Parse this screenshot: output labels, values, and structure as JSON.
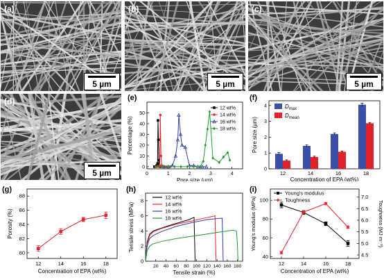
{
  "panels": {
    "a": "(a)",
    "b": "(b)",
    "c": "(c)",
    "d": "(d)",
    "e": "(e)",
    "f": "(f)",
    "g": "(g)",
    "h": "(h)",
    "i": "(i)"
  },
  "scale_bar_label": "5 µm",
  "chart_data": [
    {
      "id": "e",
      "type": "line",
      "xlabel": "Pore size (µm)",
      "ylabel": "Percentage (%)",
      "xlim": [
        0,
        4.5
      ],
      "ylim": [
        -2,
        60
      ],
      "xticks": [
        "0",
        "1",
        "2",
        "3",
        "4"
      ],
      "yticks": [
        "0",
        "10",
        "20",
        "30",
        "40",
        "50"
      ],
      "series": [
        {
          "name": "12 wt%",
          "color": "#000000",
          "marker": "square",
          "x": [
            0.35,
            0.4,
            0.45,
            0.5,
            0.52,
            0.54,
            0.56,
            0.58,
            0.62
          ],
          "y": [
            0,
            0,
            1,
            3,
            43,
            25,
            6,
            1,
            0
          ]
        },
        {
          "name": "14 wt%",
          "color": "#e8262b",
          "marker": "circle",
          "x": [
            0.45,
            0.55,
            0.6,
            0.63,
            0.66,
            0.7,
            0.8,
            0.9,
            1.0,
            1.1
          ],
          "y": [
            0,
            0,
            1,
            48,
            10,
            1,
            0,
            0,
            0,
            0
          ]
        },
        {
          "name": "16 wt%",
          "color": "#2e3fa3",
          "marker": "triangle",
          "x": [
            0.8,
            1.0,
            1.2,
            1.35,
            1.45,
            1.5,
            1.58,
            1.65,
            1.8,
            2.0,
            2.2,
            2.4,
            2.6,
            2.8
          ],
          "y": [
            0,
            0,
            1,
            10,
            25,
            48,
            30,
            20,
            18,
            1,
            1,
            0,
            0,
            0
          ]
        },
        {
          "name": "18 wt%",
          "color": "#1f9a2d",
          "marker": "diamond",
          "x": [
            0.4,
            0.7,
            1.0,
            1.3,
            1.6,
            1.9,
            2.2,
            2.5,
            2.65,
            2.75,
            2.85,
            2.95,
            3.1,
            3.4,
            3.6,
            3.8,
            3.9
          ],
          "y": [
            0,
            0,
            0,
            0,
            0,
            0,
            0,
            0,
            5,
            20,
            35,
            51,
            8,
            4,
            9,
            13,
            6
          ]
        }
      ]
    },
    {
      "id": "f",
      "type": "bar",
      "xlabel": "Concentration of EPA (wt%)",
      "ylabel": "Pore size (µm)",
      "categories": [
        "12",
        "14",
        "16",
        "18"
      ],
      "ylim": [
        0,
        4.3
      ],
      "yticks": [
        "0",
        "1",
        "2",
        "3",
        "4"
      ],
      "series": [
        {
          "name": "Dmax",
          "color": "#3a4fa6",
          "values": [
            0.95,
            1.45,
            2.2,
            4.05
          ],
          "errors": [
            0.08,
            0.07,
            0.07,
            0.1
          ]
        },
        {
          "name": "Dmean",
          "color": "#e3212a",
          "values": [
            0.52,
            0.75,
            1.08,
            2.88
          ],
          "errors": [
            0.05,
            0.05,
            0.05,
            0.05
          ]
        }
      ]
    },
    {
      "id": "g",
      "type": "line",
      "xlabel": "Concentration of EPA (wt%)",
      "ylabel": "Porosity (%)",
      "x": [
        12,
        14,
        16,
        18
      ],
      "xlim": [
        11,
        19
      ],
      "ylim": [
        79.2,
        89
      ],
      "xticks": [
        "12",
        "14",
        "16",
        "18"
      ],
      "yticks": [
        "80",
        "82",
        "84",
        "86",
        "88"
      ],
      "series": [
        {
          "name": "",
          "color": "#e3212a",
          "values": [
            80.6,
            83.0,
            84.7,
            85.3
          ],
          "errors": [
            0.4,
            0.4,
            0.3,
            0.45
          ]
        }
      ]
    },
    {
      "id": "h",
      "type": "line",
      "xlabel": "Tensile strain (%)",
      "ylabel": "Tensile stress (MPa)",
      "xlim": [
        0,
        190
      ],
      "ylim": [
        0,
        9
      ],
      "xticks": [
        "20",
        "40",
        "60",
        "80",
        "100",
        "120",
        "140",
        "160",
        "180"
      ],
      "yticks": [
        "0",
        "2",
        "4",
        "6",
        "8"
      ],
      "series": [
        {
          "name": "12 wt%",
          "color": "#000000",
          "x": [
            0,
            3,
            8,
            15,
            30,
            50,
            70,
            85,
            95,
            96,
            97
          ],
          "y": [
            0,
            2.5,
            3.6,
            4.0,
            4.35,
            4.8,
            5.2,
            5.5,
            5.8,
            3.0,
            0
          ]
        },
        {
          "name": "14 wt%",
          "color": "#e8262b",
          "x": [
            0,
            3,
            8,
            15,
            30,
            60,
            90,
            115,
            136,
            137,
            138
          ],
          "y": [
            0,
            2.3,
            3.4,
            3.9,
            4.3,
            4.9,
            5.3,
            5.7,
            6.0,
            3.0,
            0
          ]
        },
        {
          "name": "16 wt%",
          "color": "#2e3fa3",
          "x": [
            0,
            3,
            8,
            15,
            30,
            60,
            90,
            120,
            150,
            151,
            152
          ],
          "y": [
            0,
            2.0,
            3.0,
            3.4,
            3.9,
            4.6,
            5.1,
            5.5,
            5.7,
            3.0,
            0
          ]
        },
        {
          "name": "18 wt%",
          "color": "#1f9a2d",
          "x": [
            0,
            3,
            8,
            15,
            30,
            60,
            100,
            140,
            170,
            178,
            180,
            181
          ],
          "y": [
            0,
            1.4,
            2.0,
            2.3,
            2.6,
            3.0,
            3.4,
            3.8,
            4.1,
            4.0,
            2.0,
            0
          ]
        }
      ]
    },
    {
      "id": "i",
      "type": "line",
      "xlabel": "Concentration of EPA (wt%)",
      "ylabel": "Young's modulus (MPa)",
      "ylabel_right": "Toughness (MJ m⁻³)",
      "x": [
        12,
        14,
        16,
        18
      ],
      "xlim": [
        11,
        19
      ],
      "ylim": [
        38,
        112
      ],
      "ylim_right": [
        4.35,
        7.35
      ],
      "xticks": [
        "12",
        "14",
        "16",
        "18"
      ],
      "yticks": [
        "40",
        "60",
        "80",
        "100"
      ],
      "yticks_right": [
        "4.5",
        "5.0",
        "5.5",
        "6.0",
        "6.5",
        "7.0"
      ],
      "series": [
        {
          "name": "Young's modulus",
          "color": "#000000",
          "axis": "left",
          "marker": "square",
          "values": [
            95,
            87,
            75,
            54
          ],
          "errors": [
            3,
            2,
            2,
            3
          ]
        },
        {
          "name": "Toughness",
          "color": "#e8262b",
          "axis": "right",
          "marker": "diamond",
          "values": [
            4.6,
            6.35,
            6.72,
            5.7
          ],
          "errors": [
            0.05,
            0.06,
            0.05,
            0.05
          ]
        }
      ]
    }
  ]
}
